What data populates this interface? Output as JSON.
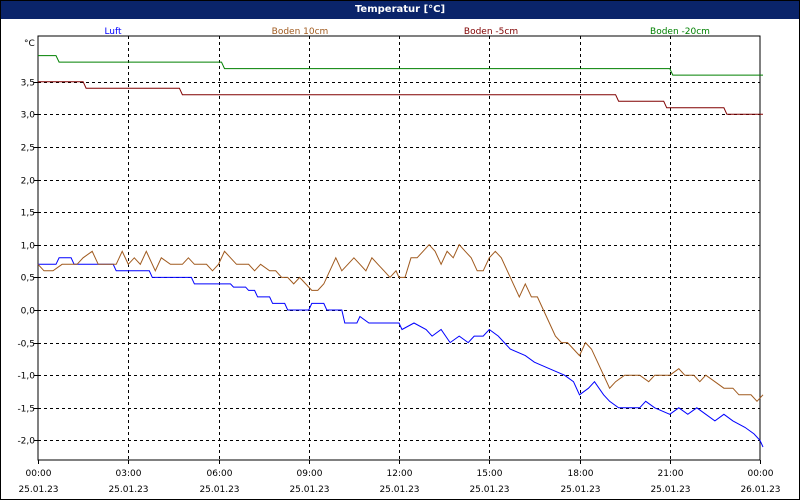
{
  "window": {
    "title": "Temperatur [°C]"
  },
  "colors": {
    "title_bg": "#0a246a",
    "grid": "#000000",
    "axis": "#000000"
  },
  "chart_data": {
    "type": "line",
    "title": "Temperatur [°C]",
    "ylabel": "°C",
    "xlabel": "",
    "ylim": [
      -2.3,
      4.2
    ],
    "xlim": [
      0,
      24
    ],
    "grid": true,
    "legend_placement": "top",
    "y_ticks": [
      3.5,
      3.0,
      2.5,
      2.0,
      1.5,
      1.0,
      0.5,
      0.0,
      -0.5,
      -1.0,
      -1.5,
      -2.0
    ],
    "y_tick_labels": [
      "3,5",
      "3,0",
      "2,5",
      "2,0",
      "1,5",
      "1,0",
      "0,5",
      "0,0",
      "-0,5",
      "-1,0",
      "-1,5",
      "-2,0"
    ],
    "x_ticks": [
      0,
      3,
      6,
      9,
      12,
      15,
      18,
      21,
      24
    ],
    "x_tick_times": [
      "00:00",
      "03:00",
      "06:00",
      "09:00",
      "12:00",
      "15:00",
      "18:00",
      "21:00",
      "00:00"
    ],
    "x_tick_dates": [
      "25.01.23",
      "25.01.23",
      "25.01.23",
      "25.01.23",
      "25.01.23",
      "25.01.23",
      "25.01.23",
      "25.01.23",
      "26.01.23"
    ],
    "series": [
      {
        "name": "Luft",
        "color": "#0000ff",
        "points": [
          [
            0,
            0.7
          ],
          [
            0.6,
            0.7
          ],
          [
            0.7,
            0.8
          ],
          [
            1.1,
            0.8
          ],
          [
            1.2,
            0.7
          ],
          [
            2.5,
            0.7
          ],
          [
            2.6,
            0.6
          ],
          [
            3.7,
            0.6
          ],
          [
            3.8,
            0.5
          ],
          [
            5.1,
            0.5
          ],
          [
            5.2,
            0.4
          ],
          [
            6.4,
            0.4
          ],
          [
            6.5,
            0.35
          ],
          [
            6.9,
            0.35
          ],
          [
            7,
            0.3
          ],
          [
            7.2,
            0.3
          ],
          [
            7.3,
            0.2
          ],
          [
            7.7,
            0.2
          ],
          [
            7.8,
            0.1
          ],
          [
            8.2,
            0.1
          ],
          [
            8.3,
            0.0
          ],
          [
            9,
            0.0
          ],
          [
            9.1,
            0.1
          ],
          [
            9.5,
            0.1
          ],
          [
            9.6,
            0.0
          ],
          [
            10.1,
            0.0
          ],
          [
            10.2,
            -0.2
          ],
          [
            10.6,
            -0.2
          ],
          [
            10.7,
            -0.1
          ],
          [
            11,
            -0.2
          ],
          [
            12,
            -0.2
          ],
          [
            12.1,
            -0.3
          ],
          [
            12.5,
            -0.2
          ],
          [
            12.9,
            -0.3
          ],
          [
            13.1,
            -0.4
          ],
          [
            13.4,
            -0.3
          ],
          [
            13.7,
            -0.5
          ],
          [
            14,
            -0.4
          ],
          [
            14.3,
            -0.5
          ],
          [
            14.5,
            -0.4
          ],
          [
            14.8,
            -0.4
          ],
          [
            15,
            -0.3
          ],
          [
            15.3,
            -0.4
          ],
          [
            15.5,
            -0.5
          ],
          [
            15.7,
            -0.6
          ],
          [
            16.2,
            -0.7
          ],
          [
            16.5,
            -0.8
          ],
          [
            17,
            -0.9
          ],
          [
            17.5,
            -1.0
          ],
          [
            17.8,
            -1.1
          ],
          [
            18,
            -1.3
          ],
          [
            18.3,
            -1.2
          ],
          [
            18.5,
            -1.1
          ],
          [
            18.8,
            -1.3
          ],
          [
            19,
            -1.4
          ],
          [
            19.3,
            -1.5
          ],
          [
            20,
            -1.5
          ],
          [
            20.2,
            -1.4
          ],
          [
            20.5,
            -1.5
          ],
          [
            21,
            -1.6
          ],
          [
            21.3,
            -1.5
          ],
          [
            21.6,
            -1.6
          ],
          [
            21.9,
            -1.5
          ],
          [
            22.2,
            -1.6
          ],
          [
            22.5,
            -1.7
          ],
          [
            22.8,
            -1.6
          ],
          [
            23.1,
            -1.7
          ],
          [
            23.5,
            -1.8
          ],
          [
            23.8,
            -1.9
          ],
          [
            24,
            -2.0
          ],
          [
            24.1,
            -2.1
          ]
        ]
      },
      {
        "name": "Boden 10cm",
        "color": "#a05a1e",
        "points": [
          [
            0,
            0.7
          ],
          [
            0.2,
            0.6
          ],
          [
            0.5,
            0.6
          ],
          [
            0.8,
            0.7
          ],
          [
            1.3,
            0.7
          ],
          [
            1.5,
            0.8
          ],
          [
            1.8,
            0.9
          ],
          [
            2,
            0.7
          ],
          [
            2.6,
            0.7
          ],
          [
            2.8,
            0.9
          ],
          [
            3,
            0.7
          ],
          [
            3.2,
            0.8
          ],
          [
            3.4,
            0.7
          ],
          [
            3.6,
            0.9
          ],
          [
            3.9,
            0.6
          ],
          [
            4.1,
            0.8
          ],
          [
            4.4,
            0.7
          ],
          [
            4.8,
            0.7
          ],
          [
            5,
            0.8
          ],
          [
            5.2,
            0.7
          ],
          [
            5.6,
            0.7
          ],
          [
            5.8,
            0.6
          ],
          [
            6,
            0.7
          ],
          [
            6.2,
            0.9
          ],
          [
            6.4,
            0.8
          ],
          [
            6.6,
            0.7
          ],
          [
            7,
            0.7
          ],
          [
            7.2,
            0.6
          ],
          [
            7.4,
            0.7
          ],
          [
            7.7,
            0.6
          ],
          [
            7.9,
            0.6
          ],
          [
            8.1,
            0.5
          ],
          [
            8.3,
            0.5
          ],
          [
            8.5,
            0.4
          ],
          [
            8.7,
            0.5
          ],
          [
            8.9,
            0.4
          ],
          [
            9.1,
            0.3
          ],
          [
            9.3,
            0.3
          ],
          [
            9.5,
            0.4
          ],
          [
            9.7,
            0.6
          ],
          [
            9.9,
            0.8
          ],
          [
            10.1,
            0.6
          ],
          [
            10.3,
            0.7
          ],
          [
            10.5,
            0.8
          ],
          [
            10.7,
            0.7
          ],
          [
            10.9,
            0.6
          ],
          [
            11.1,
            0.8
          ],
          [
            11.3,
            0.7
          ],
          [
            11.5,
            0.6
          ],
          [
            11.7,
            0.5
          ],
          [
            11.9,
            0.6
          ],
          [
            12,
            0.5
          ],
          [
            12.2,
            0.5
          ],
          [
            12.4,
            0.8
          ],
          [
            12.6,
            0.8
          ],
          [
            12.8,
            0.9
          ],
          [
            13,
            1.0
          ],
          [
            13.2,
            0.9
          ],
          [
            13.4,
            0.7
          ],
          [
            13.6,
            0.9
          ],
          [
            13.8,
            0.8
          ],
          [
            14,
            1.0
          ],
          [
            14.2,
            0.9
          ],
          [
            14.4,
            0.8
          ],
          [
            14.6,
            0.6
          ],
          [
            14.8,
            0.6
          ],
          [
            15,
            0.8
          ],
          [
            15.2,
            0.9
          ],
          [
            15.4,
            0.8
          ],
          [
            15.6,
            0.6
          ],
          [
            15.8,
            0.4
          ],
          [
            16,
            0.2
          ],
          [
            16.2,
            0.4
          ],
          [
            16.4,
            0.2
          ],
          [
            16.6,
            0.2
          ],
          [
            16.8,
            0.0
          ],
          [
            17,
            -0.2
          ],
          [
            17.2,
            -0.4
          ],
          [
            17.4,
            -0.5
          ],
          [
            17.6,
            -0.5
          ],
          [
            17.8,
            -0.6
          ],
          [
            18,
            -0.7
          ],
          [
            18.2,
            -0.5
          ],
          [
            18.4,
            -0.6
          ],
          [
            18.6,
            -0.8
          ],
          [
            18.8,
            -1.0
          ],
          [
            19,
            -1.2
          ],
          [
            19.2,
            -1.1
          ],
          [
            19.5,
            -1.0
          ],
          [
            20,
            -1.0
          ],
          [
            20.3,
            -1.1
          ],
          [
            20.5,
            -1.0
          ],
          [
            21,
            -1.0
          ],
          [
            21.3,
            -0.9
          ],
          [
            21.5,
            -1.0
          ],
          [
            21.8,
            -1.0
          ],
          [
            22,
            -1.1
          ],
          [
            22.2,
            -1.0
          ],
          [
            22.5,
            -1.1
          ],
          [
            22.8,
            -1.2
          ],
          [
            23.1,
            -1.2
          ],
          [
            23.3,
            -1.3
          ],
          [
            23.7,
            -1.3
          ],
          [
            23.9,
            -1.4
          ],
          [
            24.1,
            -1.3
          ]
        ]
      },
      {
        "name": "Boden -5cm",
        "color": "#800000",
        "points": [
          [
            0,
            3.5
          ],
          [
            1.5,
            3.5
          ],
          [
            1.6,
            3.4
          ],
          [
            4.7,
            3.4
          ],
          [
            4.8,
            3.3
          ],
          [
            19.2,
            3.3
          ],
          [
            19.3,
            3.2
          ],
          [
            20.8,
            3.2
          ],
          [
            20.9,
            3.1
          ],
          [
            22.8,
            3.1
          ],
          [
            22.9,
            3.0
          ],
          [
            24.1,
            3.0
          ]
        ]
      },
      {
        "name": "Boden -20cm",
        "color": "#008000",
        "points": [
          [
            0,
            3.9
          ],
          [
            0.6,
            3.9
          ],
          [
            0.7,
            3.8
          ],
          [
            6.1,
            3.8
          ],
          [
            6.2,
            3.7
          ],
          [
            21,
            3.7
          ],
          [
            21.1,
            3.6
          ],
          [
            24.1,
            3.6
          ]
        ]
      }
    ]
  }
}
